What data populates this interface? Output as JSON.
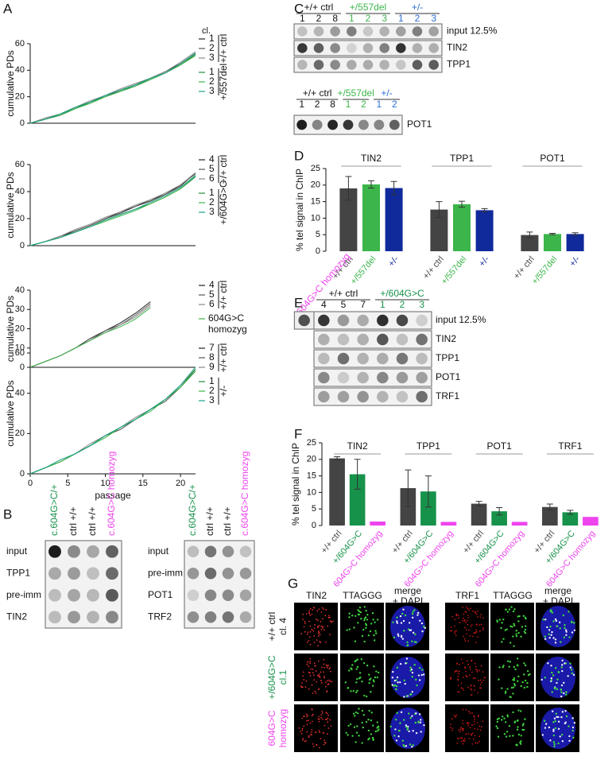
{
  "panel_labels": [
    "A",
    "B",
    "C",
    "D",
    "E",
    "F",
    "G"
  ],
  "chart_data": [
    {
      "type": "line",
      "ylabel": "cumulative PDs",
      "legend_title": "cl.",
      "xlim": [
        0,
        22
      ],
      "ylim": [
        0,
        60
      ],
      "yticks": [
        0,
        20,
        40,
        60
      ],
      "x": [
        0,
        2,
        4,
        6,
        8,
        10,
        12,
        14,
        16,
        18,
        20,
        22
      ],
      "groups": [
        {
          "label": "+/+ ctrl",
          "series": [
            {
              "name": "1",
              "color": "#222222",
              "values": [
                0,
                3,
                7,
                12,
                16,
                21,
                25,
                29,
                34,
                39,
                45,
                53
              ]
            },
            {
              "name": "2",
              "color": "#555555",
              "values": [
                0,
                3,
                7,
                11,
                16,
                20,
                25,
                29,
                33,
                38,
                44,
                52
              ]
            },
            {
              "name": "3",
              "color": "#888888",
              "values": [
                0,
                4,
                7,
                12,
                17,
                21,
                26,
                30,
                34,
                39,
                46,
                54
              ]
            }
          ]
        },
        {
          "label": "+/557del",
          "series": [
            {
              "name": "1",
              "color": "#1f8f3a",
              "values": [
                0,
                3,
                6,
                11,
                16,
                20,
                24,
                28,
                33,
                38,
                44,
                52
              ]
            },
            {
              "name": "2",
              "color": "#3cb54a",
              "values": [
                0,
                3,
                7,
                11,
                15,
                20,
                24,
                29,
                33,
                38,
                44,
                51
              ]
            },
            {
              "name": "3",
              "color": "#1aa38a",
              "values": [
                0,
                3,
                7,
                12,
                16,
                21,
                25,
                29,
                34,
                38,
                45,
                53
              ]
            }
          ]
        }
      ]
    },
    {
      "type": "line",
      "ylabel": "cumulative PDs",
      "xlim": [
        0,
        22
      ],
      "ylim": [
        0,
        60
      ],
      "yticks": [
        0,
        20,
        40,
        60
      ],
      "x": [
        0,
        2,
        4,
        6,
        8,
        10,
        12,
        14,
        16,
        18,
        20,
        22
      ],
      "groups": [
        {
          "label": "+/+ ctrl",
          "series": [
            {
              "name": "4",
              "color": "#222222",
              "values": [
                0,
                3,
                7,
                11,
                15,
                20,
                24,
                29,
                33,
                38,
                44,
                54
              ]
            },
            {
              "name": "5",
              "color": "#555555",
              "values": [
                0,
                3,
                6,
                11,
                15,
                20,
                25,
                29,
                34,
                38,
                45,
                53
              ]
            },
            {
              "name": "6",
              "color": "#888888",
              "values": [
                0,
                3,
                7,
                12,
                16,
                21,
                25,
                30,
                34,
                39,
                45,
                54
              ]
            }
          ]
        },
        {
          "label": "+/604G>C",
          "series": [
            {
              "name": "1",
              "color": "#1f8f3a",
              "values": [
                0,
                3,
                6,
                10,
                14,
                19,
                23,
                27,
                31,
                36,
                42,
                51
              ]
            },
            {
              "name": "2",
              "color": "#3cb54a",
              "values": [
                0,
                3,
                6,
                10,
                14,
                18,
                22,
                26,
                31,
                36,
                42,
                52
              ]
            },
            {
              "name": "3",
              "color": "#1aa38a",
              "values": [
                0,
                3,
                6,
                10,
                14,
                19,
                23,
                27,
                32,
                37,
                43,
                52
              ]
            }
          ]
        }
      ]
    },
    {
      "type": "line",
      "ylabel": "cumulative PDs",
      "xlim": [
        0,
        22
      ],
      "ylim": [
        0,
        40
      ],
      "yticks": [
        0,
        10,
        20,
        30,
        40
      ],
      "x": [
        0,
        2,
        4,
        6,
        8,
        10,
        12,
        14,
        16
      ],
      "groups": [
        {
          "label": "+/+ ctrl",
          "series": [
            {
              "name": "4",
              "color": "#222222",
              "values": [
                0,
                3,
                6,
                10,
                15,
                19,
                23,
                28,
                34
              ]
            },
            {
              "name": "5",
              "color": "#555555",
              "values": [
                0,
                3,
                6,
                10,
                14,
                19,
                22,
                27,
                33
              ]
            },
            {
              "name": "6",
              "color": "#888888",
              "values": [
                0,
                3,
                6,
                10,
                14,
                18,
                22,
                26,
                32
              ]
            }
          ]
        },
        {
          "label": "604G>C homozyg",
          "series": [
            {
              "name": "",
              "color": "#3cb54a",
              "values": [
                0,
                3,
                6,
                10,
                14,
                18,
                21,
                25,
                31
              ]
            }
          ]
        }
      ]
    },
    {
      "type": "line",
      "ylabel": "cumulative PDs",
      "xlabel": "passage",
      "xlim": [
        0,
        22
      ],
      "xticks": [
        0,
        5,
        10,
        15,
        20
      ],
      "ylim": [
        0,
        60
      ],
      "yticks": [
        0,
        20,
        40,
        60
      ],
      "x": [
        0,
        2,
        4,
        6,
        8,
        10,
        12,
        14,
        16,
        18,
        20,
        22
      ],
      "groups": [
        {
          "label": "+/+ ctrl",
          "series": [
            {
              "name": "7",
              "color": "#222222",
              "values": [
                0,
                3,
                6,
                10,
                14,
                19,
                23,
                27,
                32,
                37,
                43,
                52
              ]
            },
            {
              "name": "8",
              "color": "#555555",
              "values": [
                0,
                3,
                6,
                10,
                14,
                19,
                22,
                27,
                32,
                36,
                43,
                51
              ]
            },
            {
              "name": "9",
              "color": "#888888",
              "values": [
                0,
                3,
                6,
                10,
                15,
                19,
                23,
                28,
                32,
                37,
                44,
                52
              ]
            }
          ]
        },
        {
          "label": "+/-",
          "series": [
            {
              "name": "1",
              "color": "#1f8f3a",
              "values": [
                0,
                3,
                6,
                10,
                14,
                19,
                23,
                27,
                32,
                37,
                43,
                52
              ]
            },
            {
              "name": "2",
              "color": "#3cb54a",
              "values": [
                0,
                3,
                6,
                10,
                14,
                18,
                23,
                27,
                31,
                37,
                43,
                51
              ]
            },
            {
              "name": "3",
              "color": "#1aa38a",
              "values": [
                0,
                3,
                7,
                10,
                14,
                19,
                23,
                27,
                32,
                37,
                44,
                53
              ]
            }
          ]
        }
      ]
    },
    {
      "type": "bar",
      "ylabel": "% tel signal in ChIP",
      "ylim": [
        0,
        25
      ],
      "yticks": [
        0,
        5,
        10,
        15,
        20,
        25
      ],
      "categories": [
        "TIN2",
        "TPP1",
        "POT1"
      ],
      "series": [
        {
          "name": "+/+ ctrl",
          "color": "#444444",
          "values": [
            19,
            12.6,
            4.9
          ],
          "errors": [
            3.6,
            2.4,
            0.9
          ]
        },
        {
          "name": "+/557del",
          "color": "#3cb54a",
          "values": [
            20.2,
            14.2,
            5.2
          ],
          "errors": [
            1.1,
            0.9,
            0.2
          ]
        },
        {
          "name": "+/-",
          "color": "#102a9c",
          "values": [
            19.1,
            12.4,
            5.2
          ],
          "errors": [
            2,
            0.5,
            0.4
          ]
        }
      ]
    },
    {
      "type": "bar",
      "ylabel": "% tel signal in ChIP",
      "ylim": [
        0,
        25
      ],
      "yticks": [
        0,
        5,
        10,
        15,
        20,
        25
      ],
      "categories": [
        "TIN2",
        "TPP1",
        "POT1",
        "TRF1"
      ],
      "series": [
        {
          "name": "+/+ ctrl",
          "color": "#444444",
          "values": [
            20.3,
            11.3,
            6.6,
            5.6
          ],
          "errors": [
            0.5,
            5.5,
            0.7,
            0.9
          ]
        },
        {
          "name": "+/604G>C",
          "color": "#17924a",
          "values": [
            15.5,
            10.3,
            4.3,
            4
          ],
          "errors": [
            4.5,
            4.7,
            1.1,
            0.6
          ]
        },
        {
          "name": "604G>C homozyg",
          "color": "#ee44ee",
          "values": [
            1.2,
            1.1,
            1.1,
            2.6
          ],
          "errors": [
            null,
            null,
            null,
            null
          ]
        }
      ]
    }
  ],
  "blot_B": {
    "columns": [
      {
        "label": "c.604G>C/+",
        "color": "#17924a"
      },
      {
        "label": "ctrl +/+",
        "color": "#111111"
      },
      {
        "label": "ctrl +/+",
        "color": "#111111"
      },
      {
        "label": "c.604G>C homozyg",
        "color": "#ee44ee"
      }
    ],
    "left_rows": [
      "input",
      "TPP1",
      "pre-imm",
      "TIN2"
    ],
    "right_rows": [
      "input",
      "pre-imm",
      "POT1",
      "TRF2"
    ]
  },
  "blot_C": {
    "groups": [
      {
        "label": "+/+ ctrl",
        "color": "#111111",
        "lanes": [
          "1",
          "2",
          "8"
        ]
      },
      {
        "label": "+/557del",
        "color": "#3cb54a",
        "lanes": [
          "1",
          "2",
          "3"
        ]
      },
      {
        "label": "+/-",
        "color": "#2a6fd0",
        "lanes": [
          "1",
          "2",
          "3"
        ]
      }
    ],
    "rows": [
      "input 12.5%",
      "TIN2",
      "TPP1"
    ]
  },
  "blot_C2": {
    "groups": [
      {
        "label": "+/+ ctrl",
        "color": "#111111",
        "lanes": [
          "1",
          "2",
          "8"
        ]
      },
      {
        "label": "+/557del",
        "color": "#3cb54a",
        "lanes": [
          "1",
          "2"
        ]
      },
      {
        "label": "+/-",
        "color": "#2a6fd0",
        "lanes": [
          "1",
          "2"
        ]
      }
    ],
    "rows": [
      "POT1"
    ]
  },
  "blot_E": {
    "side_label": "604G>C homozyg",
    "side_color": "#ee44ee",
    "groups": [
      {
        "label": "+/+ ctrl",
        "color": "#111111",
        "lanes": [
          "4",
          "5",
          "7"
        ]
      },
      {
        "label": "+/604G>C",
        "color": "#17924a",
        "lanes": [
          "1",
          "2",
          "3"
        ]
      }
    ],
    "rows": [
      "input 12.5%",
      "TIN2",
      "TPP1",
      "POT1",
      "TRF1"
    ]
  },
  "panel_G": {
    "columns": [
      "TIN2",
      "TTAGGG",
      "merge + DAPI",
      "TRF1",
      "TTAGGG",
      "merge + DAPI"
    ],
    "rows": [
      {
        "lines": [
          "+/+ ctrl",
          "cl. 4"
        ],
        "color": "#111111"
      },
      {
        "lines": [
          "+/604G>C",
          "cl.1"
        ],
        "color": "#17924a"
      },
      {
        "lines": [
          "604G>C",
          "homozyg"
        ],
        "color": "#ee44ee"
      }
    ]
  }
}
